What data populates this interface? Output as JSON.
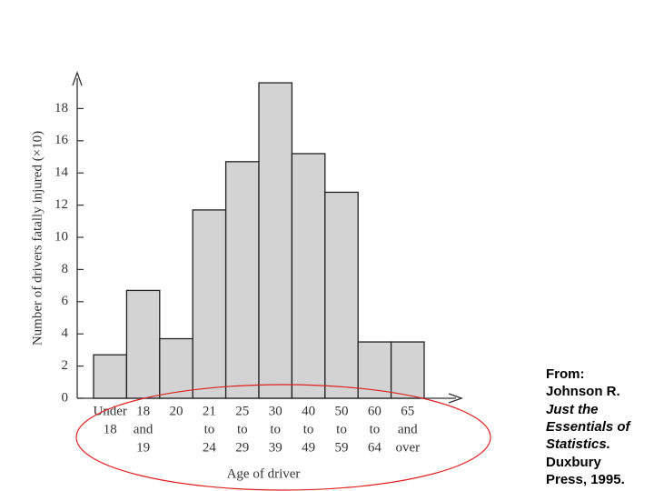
{
  "chart_data": {
    "type": "bar",
    "ylabel": "Number of drivers fatally injured (×10)",
    "xlabel": "Age of driver",
    "categories": [
      [
        "Under",
        "18"
      ],
      [
        "18",
        "and",
        "19"
      ],
      [
        "20"
      ],
      [
        "21",
        "to",
        "24"
      ],
      [
        "25",
        "to",
        "29"
      ],
      [
        "30",
        "to",
        "39"
      ],
      [
        "40",
        "to",
        "49"
      ],
      [
        "50",
        "to",
        "59"
      ],
      [
        "60",
        "to",
        "64"
      ],
      [
        "65",
        "and",
        "over"
      ]
    ],
    "values": [
      2.7,
      6.7,
      3.7,
      11.7,
      14.7,
      19.6,
      15.2,
      12.8,
      3.5,
      3.5
    ],
    "color": "#d3d3d3",
    "ylim": [
      0,
      20
    ],
    "yticks": [
      0,
      2,
      4,
      6,
      8,
      10,
      12,
      14,
      16,
      18
    ]
  },
  "source": [
    "From:",
    "Johnson R.",
    "Just the",
    "Essentials of",
    "Statistics.",
    "Duxbury",
    "Press, 1995."
  ]
}
